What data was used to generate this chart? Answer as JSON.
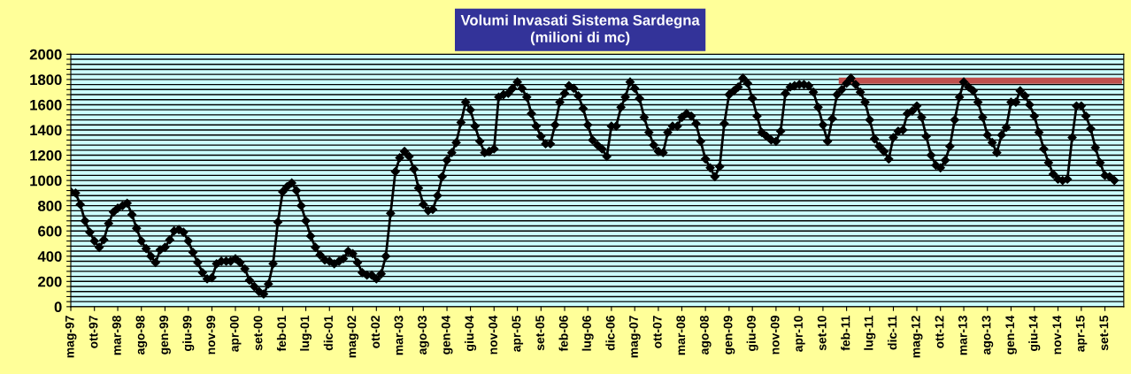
{
  "chart_data": {
    "type": "line",
    "title": "Volumi Invasati Sistema Sardegna",
    "subtitle": "(milioni di mc)",
    "marker": "diamond",
    "line_style": "solid",
    "grid": "y",
    "xlim": [
      "1997-05",
      "2016-01"
    ],
    "ylim": [
      0,
      2000
    ],
    "yticks": [
      0,
      {
        "value": 40,
        "label": null
      },
      {
        "value": 80,
        "label": null
      },
      {
        "value": 120,
        "label": null
      },
      {
        "value": 160,
        "label": null
      },
      200,
      {
        "value": 240,
        "label": null
      },
      {
        "value": 280,
        "label": null
      },
      {
        "value": 320,
        "label": null
      },
      {
        "value": 360,
        "label": null
      },
      400,
      {
        "value": 440,
        "label": null
      },
      {
        "value": 480,
        "label": null
      },
      {
        "value": 520,
        "label": null
      },
      {
        "value": 560,
        "label": null
      },
      600,
      {
        "value": 640,
        "label": null
      },
      {
        "value": 680,
        "label": null
      },
      {
        "value": 720,
        "label": null
      },
      {
        "value": 760,
        "label": null
      },
      800,
      {
        "value": 840,
        "label": null
      },
      {
        "value": 880,
        "label": null
      },
      {
        "value": 920,
        "label": null
      },
      {
        "value": 960,
        "label": null
      },
      1000,
      {
        "value": 1040,
        "label": null
      },
      {
        "value": 1080,
        "label": null
      },
      {
        "value": 1120,
        "label": null
      },
      {
        "value": 1160,
        "label": null
      },
      1200,
      {
        "value": 1240,
        "label": null
      },
      {
        "value": 1280,
        "label": null
      },
      {
        "value": 1320,
        "label": null
      },
      {
        "value": 1360,
        "label": null
      },
      1400,
      {
        "value": 1440,
        "label": null
      },
      {
        "value": 1480,
        "label": null
      },
      {
        "value": 1520,
        "label": null
      },
      {
        "value": 1560,
        "label": null
      },
      1600,
      {
        "value": 1640,
        "label": null
      },
      {
        "value": 1680,
        "label": null
      },
      {
        "value": 1720,
        "label": null
      },
      {
        "value": 1760,
        "label": null
      },
      1800,
      {
        "value": 1840,
        "label": null
      },
      {
        "value": 1880,
        "label": null
      },
      {
        "value": 1920,
        "label": null
      },
      {
        "value": 1960,
        "label": null
      },
      2000
    ],
    "xticks": [
      {
        "value": "1997-05",
        "label": "mag-97"
      },
      {
        "value": "1997-10",
        "label": "ott-97"
      },
      {
        "value": "1998-03",
        "label": "mar-98"
      },
      {
        "value": "1998-08",
        "label": "ago-98"
      },
      {
        "value": "1999-01",
        "label": "gen-99"
      },
      {
        "value": "1999-06",
        "label": "giu-99"
      },
      {
        "value": "1999-11",
        "label": "nov-99"
      },
      {
        "value": "2000-04",
        "label": "apr-00"
      },
      {
        "value": "2000-09",
        "label": "set-00"
      },
      {
        "value": "2001-02",
        "label": "feb-01"
      },
      {
        "value": "2001-07",
        "label": "lug-01"
      },
      {
        "value": "2001-12",
        "label": "dic-01"
      },
      {
        "value": "2002-05",
        "label": "mag-02"
      },
      {
        "value": "2002-10",
        "label": "ott-02"
      },
      {
        "value": "2003-03",
        "label": "mar-03"
      },
      {
        "value": "2003-08",
        "label": "ago-03"
      },
      {
        "value": "2004-01",
        "label": "gen-04"
      },
      {
        "value": "2004-06",
        "label": "giu-04"
      },
      {
        "value": "2004-11",
        "label": "nov-04"
      },
      {
        "value": "2005-04",
        "label": "apr-05"
      },
      {
        "value": "2005-09",
        "label": "set-05"
      },
      {
        "value": "2006-02",
        "label": "feb-06"
      },
      {
        "value": "2006-07",
        "label": "lug-06"
      },
      {
        "value": "2006-12",
        "label": "dic-06"
      },
      {
        "value": "2007-05",
        "label": "mag-07"
      },
      {
        "value": "2007-10",
        "label": "ott-07"
      },
      {
        "value": "2008-03",
        "label": "mar-08"
      },
      {
        "value": "2008-08",
        "label": "ago-08"
      },
      {
        "value": "2009-01",
        "label": "gen-09"
      },
      {
        "value": "2009-06",
        "label": "giu-09"
      },
      {
        "value": "2009-11",
        "label": "nov-09"
      },
      {
        "value": "2010-04",
        "label": "apr-10"
      },
      {
        "value": "2010-09",
        "label": "set-10"
      },
      {
        "value": "2011-02",
        "label": "feb-11"
      },
      {
        "value": "2011-07",
        "label": "lug-11"
      },
      {
        "value": "2011-12",
        "label": "dic-11"
      },
      {
        "value": "2012-05",
        "label": "mag-12"
      },
      {
        "value": "2012-10",
        "label": "ott-12"
      },
      {
        "value": "2013-03",
        "label": "mar-13"
      },
      {
        "value": "2013-08",
        "label": "ago-13"
      },
      {
        "value": "2014-01",
        "label": "gen-14"
      },
      {
        "value": "2014-06",
        "label": "giu-14"
      },
      {
        "value": "2014-11",
        "label": "nov-14"
      },
      {
        "value": "2015-04",
        "label": "apr-15"
      },
      {
        "value": "2015-09",
        "label": "set-15"
      }
    ],
    "series": [
      {
        "color": "#000000",
        "x": [
          "1997-05",
          "1997-06",
          "1997-07",
          "1997-08",
          "1997-09",
          "1997-10",
          "1997-11",
          "1997-12",
          "1998-01",
          "1998-02",
          "1998-03",
          "1998-04",
          "1998-05",
          "1998-06",
          "1998-07",
          "1998-08",
          "1998-09",
          "1998-10",
          "1998-11",
          "1998-12",
          "1999-01",
          "1999-02",
          "1999-03",
          "1999-04",
          "1999-05",
          "1999-06",
          "1999-07",
          "1999-08",
          "1999-09",
          "1999-10",
          "1999-11",
          "1999-12",
          "2000-01",
          "2000-02",
          "2000-03",
          "2000-04",
          "2000-05",
          "2000-06",
          "2000-07",
          "2000-08",
          "2000-09",
          "2000-10",
          "2000-11",
          "2000-12",
          "2001-01",
          "2001-02",
          "2001-03",
          "2001-04",
          "2001-05",
          "2001-06",
          "2001-07",
          "2001-08",
          "2001-09",
          "2001-10",
          "2001-11",
          "2001-12",
          "2002-01",
          "2002-02",
          "2002-03",
          "2002-04",
          "2002-05",
          "2002-06",
          "2002-07",
          "2002-08",
          "2002-09",
          "2002-10",
          "2002-11",
          "2002-12",
          "2003-01",
          "2003-02",
          "2003-03",
          "2003-04",
          "2003-05",
          "2003-06",
          "2003-07",
          "2003-08",
          "2003-09",
          "2003-10",
          "2003-11",
          "2003-12",
          "2004-01",
          "2004-02",
          "2004-03",
          "2004-04",
          "2004-05",
          "2004-06",
          "2004-07",
          "2004-08",
          "2004-09",
          "2004-10",
          "2004-11",
          "2004-12",
          "2005-01",
          "2005-02",
          "2005-03",
          "2005-04",
          "2005-05",
          "2005-06",
          "2005-07",
          "2005-08",
          "2005-09",
          "2005-10",
          "2005-11",
          "2005-12",
          "2006-01",
          "2006-02",
          "2006-03",
          "2006-04",
          "2006-05",
          "2006-06",
          "2006-07",
          "2006-08",
          "2006-09",
          "2006-10",
          "2006-11",
          "2006-12",
          "2007-01",
          "2007-02",
          "2007-03",
          "2007-04",
          "2007-05",
          "2007-06",
          "2007-07",
          "2007-08",
          "2007-09",
          "2007-10",
          "2007-11",
          "2007-12",
          "2008-01",
          "2008-02",
          "2008-03",
          "2008-04",
          "2008-05",
          "2008-06",
          "2008-07",
          "2008-08",
          "2008-09",
          "2008-10",
          "2008-11",
          "2008-12",
          "2009-01",
          "2009-02",
          "2009-03",
          "2009-04",
          "2009-05",
          "2009-06",
          "2009-07",
          "2009-08",
          "2009-09",
          "2009-10",
          "2009-11",
          "2009-12",
          "2010-01",
          "2010-02",
          "2010-03",
          "2010-04",
          "2010-05",
          "2010-06",
          "2010-07",
          "2010-08",
          "2010-09",
          "2010-10",
          "2010-11",
          "2010-12",
          "2011-01",
          "2011-02",
          "2011-03",
          "2011-04",
          "2011-05",
          "2011-06",
          "2011-07",
          "2011-08",
          "2011-09",
          "2011-10",
          "2011-11",
          "2011-12",
          "2012-01",
          "2012-02",
          "2012-03",
          "2012-04",
          "2012-05",
          "2012-06",
          "2012-07",
          "2012-08",
          "2012-09",
          "2012-10",
          "2012-11",
          "2012-12",
          "2013-01",
          "2013-02",
          "2013-03",
          "2013-04",
          "2013-05",
          "2013-06",
          "2013-07",
          "2013-08",
          "2013-09",
          "2013-10",
          "2013-11",
          "2013-12",
          "2014-01",
          "2014-02",
          "2014-03",
          "2014-04",
          "2014-05",
          "2014-06",
          "2014-07",
          "2014-08",
          "2014-09",
          "2014-10",
          "2014-11",
          "2014-12",
          "2015-01",
          "2015-02",
          "2015-03",
          "2015-04",
          "2015-05",
          "2015-06",
          "2015-07",
          "2015-08",
          "2015-09",
          "2015-10",
          "2015-11"
        ],
        "values": [
          910,
          900,
          810,
          680,
          590,
          520,
          470,
          530,
          660,
          750,
          780,
          800,
          820,
          730,
          620,
          520,
          460,
          400,
          350,
          450,
          470,
          530,
          600,
          610,
          590,
          520,
          430,
          350,
          270,
          220,
          230,
          340,
          360,
          360,
          360,
          380,
          350,
          300,
          210,
          160,
          120,
          100,
          180,
          340,
          670,
          910,
          950,
          980,
          920,
          800,
          680,
          560,
          470,
          410,
          370,
          360,
          340,
          360,
          380,
          440,
          420,
          350,
          270,
          250,
          250,
          220,
          260,
          400,
          740,
          1070,
          1180,
          1230,
          1190,
          1090,
          940,
          810,
          760,
          770,
          880,
          1030,
          1160,
          1220,
          1300,
          1460,
          1620,
          1560,
          1430,
          1310,
          1220,
          1230,
          1250,
          1660,
          1680,
          1690,
          1730,
          1780,
          1730,
          1660,
          1530,
          1430,
          1350,
          1290,
          1290,
          1440,
          1620,
          1690,
          1750,
          1730,
          1670,
          1570,
          1440,
          1320,
          1280,
          1250,
          1190,
          1430,
          1430,
          1580,
          1660,
          1780,
          1730,
          1650,
          1500,
          1380,
          1280,
          1230,
          1220,
          1380,
          1430,
          1430,
          1500,
          1530,
          1510,
          1450,
          1310,
          1170,
          1100,
          1030,
          1110,
          1450,
          1680,
          1710,
          1740,
          1810,
          1770,
          1650,
          1510,
          1380,
          1350,
          1320,
          1310,
          1390,
          1690,
          1740,
          1750,
          1760,
          1760,
          1750,
          1700,
          1580,
          1440,
          1310,
          1490,
          1680,
          1720,
          1770,
          1810,
          1760,
          1700,
          1620,
          1480,
          1330,
          1270,
          1230,
          1170,
          1340,
          1390,
          1400,
          1530,
          1550,
          1590,
          1500,
          1350,
          1200,
          1120,
          1100,
          1160,
          1270,
          1480,
          1660,
          1780,
          1740,
          1710,
          1620,
          1500,
          1360,
          1300,
          1220,
          1360,
          1420,
          1620,
          1620,
          1710,
          1670,
          1600,
          1510,
          1380,
          1250,
          1140,
          1050,
          1010,
          1000,
          1010,
          1340,
          1590,
          1590,
          1510,
          1410,
          1260,
          1140,
          1040,
          1030,
          1000
        ]
      },
      {
        "color": "#c0504d",
        "marker": "none",
        "x": [
          "2011-01",
          "2015-12"
        ],
        "values": [
          1790,
          1790
        ]
      }
    ]
  }
}
